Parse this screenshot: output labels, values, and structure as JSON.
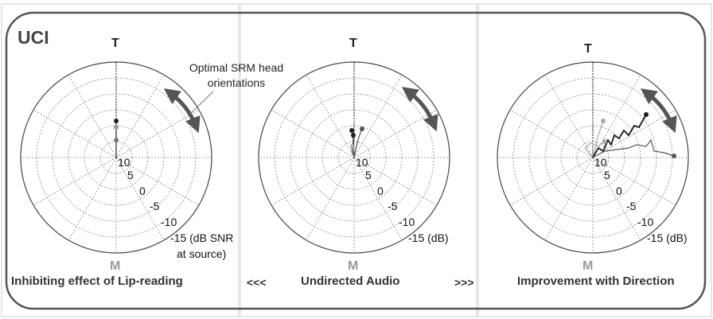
{
  "app_label": "UCI",
  "panels": [
    {
      "id": "lip",
      "top_label": "T",
      "bottom_label": "M",
      "caption": "Inhibiting effect of Lip-reading",
      "ring_labels": [
        "10",
        "5",
        "0",
        "-5",
        "-10",
        "-15 (dB SNR"
      ],
      "ring_note": "at source)",
      "annotation": "Optimal SRM head orientations"
    },
    {
      "id": "undirected",
      "top_label": "T",
      "bottom_label": "M",
      "caption": "Undirected Audio",
      "ring_labels": [
        "10",
        "5",
        "0",
        "-5",
        "-10",
        "-15 (dB)"
      ]
    },
    {
      "id": "direction",
      "top_label": "T",
      "bottom_label": "M",
      "caption": "Improvement with Direction",
      "ring_labels": [
        "10",
        "5",
        "0",
        "-5",
        "-10",
        "-15 (dB)"
      ]
    }
  ],
  "separators": {
    "left": "<<<",
    "right": ">>>"
  },
  "colors": {
    "dark_trace": "#1a1a1a",
    "mid_trace": "#555555",
    "light_trace": "#aaaaaa",
    "arrow": "#555555",
    "frame": "#555555",
    "grid": "#888888"
  }
}
